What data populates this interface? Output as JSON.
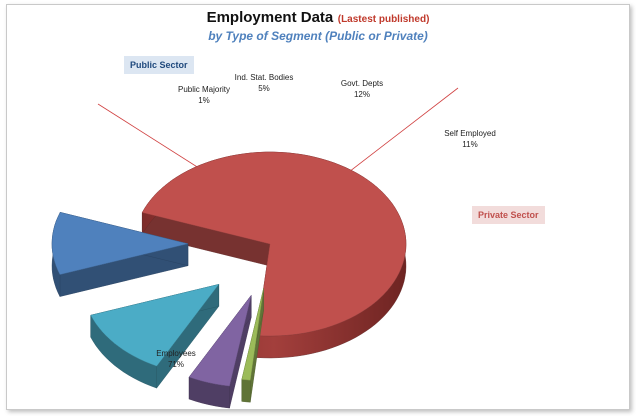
{
  "chart_data": {
    "type": "pie",
    "title": "Employment Data",
    "title_note": "(Lastest published)",
    "subtitle": "by Type of Segment (Public or Private)",
    "groups": [
      "Public Sector",
      "Private Sector"
    ],
    "slices": [
      {
        "label": "Employees",
        "value": 71,
        "display": "71%",
        "color": "#c0504d",
        "exploded": false
      },
      {
        "label": "Public Majority",
        "value": 1,
        "display": "1%",
        "color": "#9bbb59",
        "exploded": true
      },
      {
        "label": "Ind. Stat. Bodies",
        "value": 5,
        "display": "5%",
        "color": "#8064a2",
        "exploded": true
      },
      {
        "label": "Govt. Depts",
        "value": 12,
        "display": "12%",
        "color": "#4bacc6",
        "exploded": true
      },
      {
        "label": "Self Employed",
        "value": 11,
        "display": "11%",
        "color": "#4f81bd",
        "exploded": true
      }
    ]
  }
}
